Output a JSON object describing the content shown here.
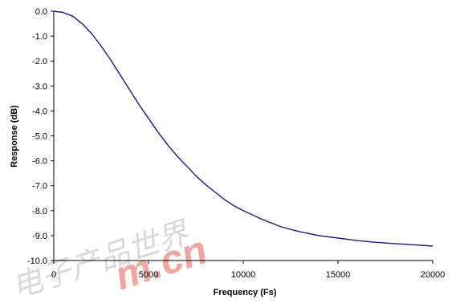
{
  "chart_data": {
    "type": "line",
    "title": "",
    "xlabel": "Frequency (Fs)",
    "ylabel": "Response (dB)",
    "xlim": [
      0,
      20000
    ],
    "ylim": [
      -10.0,
      0.0
    ],
    "xticks": [
      0,
      5000,
      10000,
      15000,
      20000
    ],
    "xtick_labels": [
      "0",
      "5000",
      "10000",
      "15000",
      "20000"
    ],
    "yticks": [
      0,
      -1,
      -2,
      -3,
      -4,
      -5,
      -6,
      -7,
      -8,
      -9,
      -10
    ],
    "ytick_labels": [
      "0.0",
      "-1.0",
      "-2.0",
      "-3.0",
      "-4.0",
      "-5.0",
      "-6.0",
      "-7.0",
      "-8.0",
      "-9.0",
      "-10.0"
    ],
    "grid": false,
    "legend": "none",
    "series": [
      {
        "color": "#1a1a80",
        "x": [
          0,
          500,
          1000,
          1500,
          2000,
          2500,
          3000,
          3500,
          4000,
          4500,
          5000,
          5500,
          6000,
          6500,
          7000,
          7500,
          8000,
          8500,
          9000,
          9500,
          10000,
          11000,
          12000,
          13000,
          14000,
          15000,
          16000,
          17000,
          18000,
          19000,
          20000
        ],
        "y": [
          0.0,
          -0.05,
          -0.2,
          -0.5,
          -0.9,
          -1.4,
          -1.95,
          -2.55,
          -3.15,
          -3.75,
          -4.3,
          -4.85,
          -5.35,
          -5.8,
          -6.2,
          -6.6,
          -6.95,
          -7.25,
          -7.55,
          -7.8,
          -8.0,
          -8.35,
          -8.65,
          -8.85,
          -9.0,
          -9.1,
          -9.2,
          -9.27,
          -9.32,
          -9.37,
          -9.42
        ]
      }
    ]
  },
  "watermark": {
    "text": "电子产品世界",
    "logo": "m.cn"
  }
}
